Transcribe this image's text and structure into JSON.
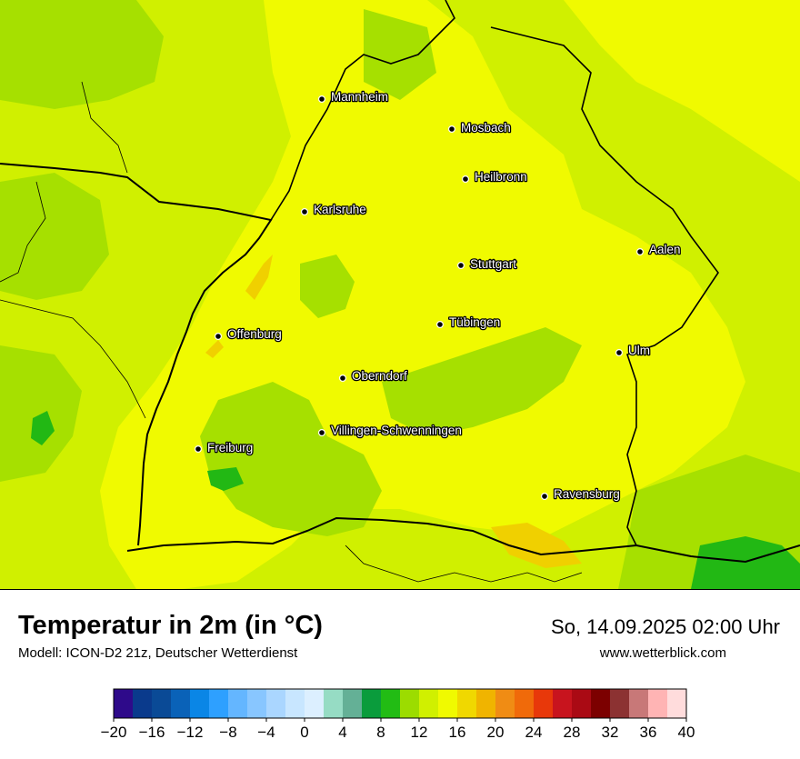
{
  "map": {
    "cities": [
      {
        "name": "Mannheim",
        "color_hint": ""
      },
      {
        "name": "Mosbach"
      },
      {
        "name": "Heilbronn"
      },
      {
        "name": "Karlsruhe"
      },
      {
        "name": "Aalen"
      },
      {
        "name": "Stuttgart"
      },
      {
        "name": "Tübingen"
      },
      {
        "name": "Offenburg"
      },
      {
        "name": "Ulm"
      },
      {
        "name": "Oberndorf"
      },
      {
        "name": "Villingen-Schwenningen"
      },
      {
        "name": "Freiburg"
      },
      {
        "name": "Ravensburg"
      }
    ],
    "colors": {
      "base_yellow_green": "#d0f000",
      "yellow": "#f0fa00",
      "green": "#a6e000",
      "dark_green": "#22b814",
      "orange_yellow": "#f0d000"
    }
  },
  "header": {
    "title": "Temperatur in 2m (in °C)",
    "subtitle": "Modell: ICON-D2 21z, Deutscher Wetterdienst",
    "datetime": "So, 14.09.2025 02:00 Uhr",
    "website": "www.wetterblick.com"
  },
  "legend": {
    "min": -20,
    "max": 40,
    "tick_labels": [
      "−20",
      "−16",
      "−12",
      "−8",
      "−4",
      "0",
      "4",
      "8",
      "12",
      "16",
      "20",
      "24",
      "28",
      "32",
      "36",
      "40"
    ],
    "colors": [
      "#2e0a8a",
      "#0a3a8c",
      "#0a4a96",
      "#0a62b8",
      "#0a86e6",
      "#2ea0ff",
      "#64b6ff",
      "#88c6ff",
      "#aad6ff",
      "#c8e6ff",
      "#dcefff",
      "#96dcc4",
      "#64b096",
      "#0a9c3c",
      "#22bc14",
      "#9cdc00",
      "#d0f000",
      "#f0fa00",
      "#f0d800",
      "#f0b400",
      "#f08c14",
      "#f06a0a",
      "#e8380a",
      "#c8141e",
      "#aa0a14",
      "#7c0000",
      "#8c3232",
      "#c87878",
      "#ffb4b4",
      "#ffdcdc"
    ]
  }
}
